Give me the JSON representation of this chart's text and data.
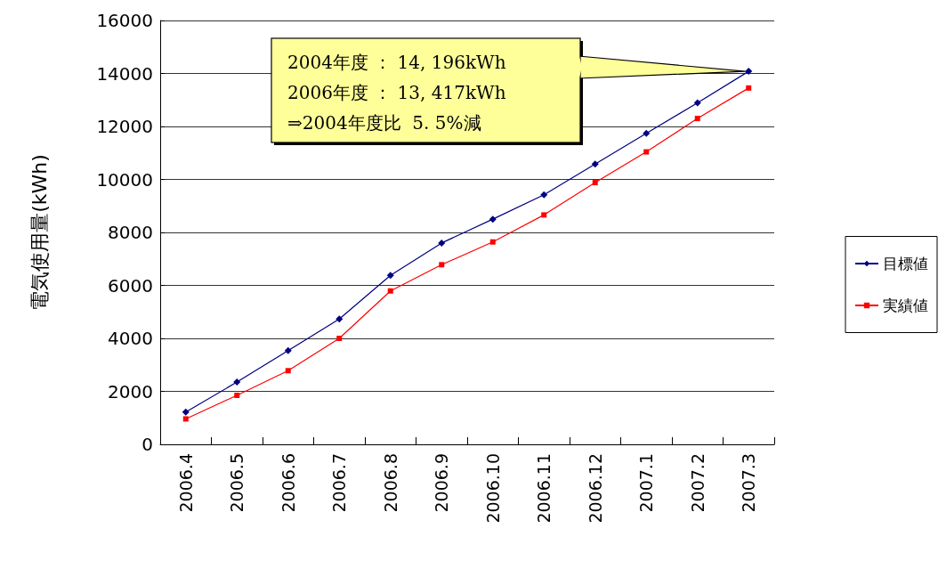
{
  "chart_data": {
    "type": "line",
    "ylabel": "電気使用量(kWh)",
    "categories": [
      "2006.4",
      "2006.5",
      "2006.6",
      "2006.7",
      "2006.8",
      "2006.9",
      "2006.10",
      "2006.11",
      "2006.12",
      "2007.1",
      "2007.2",
      "2007.3"
    ],
    "series": [
      {
        "name": "目標値",
        "color": "#000080",
        "marker": "diamond",
        "values": [
          1220,
          2350,
          3540,
          4730,
          6380,
          7600,
          8500,
          9420,
          10580,
          11740,
          12890,
          14080
        ]
      },
      {
        "name": "実績値",
        "color": "#ff0000",
        "marker": "square",
        "values": [
          960,
          1850,
          2780,
          4000,
          5790,
          6780,
          7640,
          8660,
          9880,
          11040,
          12300,
          13450
        ]
      }
    ],
    "ylim": [
      0,
      16000
    ],
    "yticks": [
      0,
      2000,
      4000,
      6000,
      8000,
      10000,
      12000,
      14000,
      16000
    ],
    "grid": "y",
    "legend": "right",
    "annotations": [
      "2004年度 ： 14, 196kWh\n2006年度 ： 13, 417kWh\n⇒2004年度比  5. 5%減"
    ]
  }
}
